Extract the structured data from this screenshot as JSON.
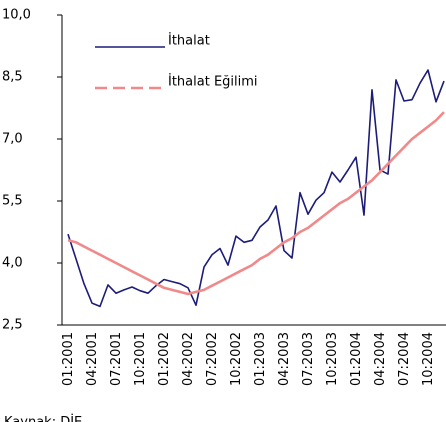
{
  "chart_data": {
    "type": "line",
    "categories": [
      "01:2001",
      null,
      null,
      "04:2001",
      null,
      null,
      "07:2001",
      null,
      null,
      "10:2001",
      null,
      null,
      "01:2002",
      null,
      null,
      "04:2002",
      null,
      null,
      "07:2002",
      null,
      null,
      "10:2002",
      null,
      null,
      "01:2003",
      null,
      null,
      "04:2003",
      null,
      null,
      "07:2003",
      null,
      null,
      "10:2003",
      null,
      null,
      "01:2004",
      null,
      null,
      "04:2004",
      null,
      null,
      "07:2004",
      null,
      null,
      "10:2004",
      null,
      null
    ],
    "series": [
      {
        "name": "İthalat",
        "color": "#1c1c7a",
        "values": [
          4.7,
          4.1,
          3.5,
          3.03,
          2.95,
          3.47,
          3.27,
          3.35,
          3.42,
          3.33,
          3.27,
          3.45,
          3.6,
          3.55,
          3.5,
          3.4,
          2.98,
          3.9,
          4.2,
          4.35,
          3.95,
          4.65,
          4.5,
          4.55,
          4.87,
          5.04,
          5.38,
          4.3,
          4.12,
          5.7,
          5.18,
          5.52,
          5.7,
          6.2,
          5.96,
          6.25,
          6.56,
          5.16,
          8.19,
          6.25,
          6.15,
          8.43,
          7.92,
          7.95,
          8.35,
          8.67,
          7.9,
          8.4
        ]
      },
      {
        "name": "İthalat Eğilimi",
        "color": "#f08a8a",
        "values": [
          4.55,
          4.5,
          4.4,
          4.3,
          4.2,
          4.1,
          4.0,
          3.9,
          3.8,
          3.7,
          3.6,
          3.5,
          3.4,
          3.35,
          3.3,
          3.25,
          3.3,
          3.35,
          3.45,
          3.55,
          3.65,
          3.75,
          3.85,
          3.95,
          4.1,
          4.2,
          4.35,
          4.5,
          4.6,
          4.75,
          4.85,
          5.0,
          5.15,
          5.3,
          5.45,
          5.55,
          5.7,
          5.85,
          6.0,
          6.2,
          6.4,
          6.6,
          6.8,
          7.0,
          7.15,
          7.3,
          7.45,
          7.65
        ]
      }
    ],
    "ylim": [
      2.5,
      10.0
    ],
    "yticks": [
      {
        "value": 2.5,
        "label": "2,5"
      },
      {
        "value": 4.0,
        "label": "4,0"
      },
      {
        "value": 5.5,
        "label": "5,5"
      },
      {
        "value": 7.0,
        "label": "7,0"
      },
      {
        "value": 8.5,
        "label": "8,5"
      },
      {
        "value": 10.0,
        "label": "10,0"
      }
    ],
    "grid": false,
    "source": "Kaynak: DİE"
  }
}
